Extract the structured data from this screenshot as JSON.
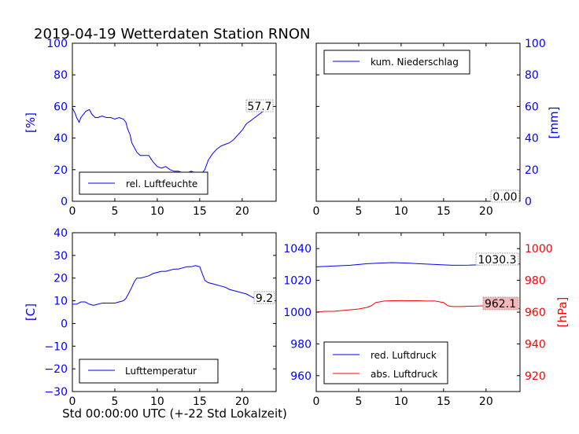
{
  "title": "2019-04-19 Wetterdaten Station RNON",
  "xlabel": "Std 00:00:00 UTC (+-22 Std Lokalzeit)",
  "colors": {
    "blue": "#0000ff",
    "red": "#ff0000",
    "axis": "#000000",
    "pressure_badge": "#f4b8b8"
  },
  "chart_data": [
    {
      "id": "humidity",
      "type": "line",
      "ylabel": "[%]",
      "xlim": [
        0,
        24
      ],
      "ylim": [
        0,
        100
      ],
      "xticks": [
        0,
        5,
        10,
        15,
        20
      ],
      "yticks": [
        0,
        20,
        40,
        60,
        80,
        100
      ],
      "legend": {
        "entries": [
          "rel. Luftfeuchte"
        ],
        "placement": "lower-left"
      },
      "last_value_label": "57.7",
      "series": [
        {
          "name": "rel. Luftfeuchte",
          "x": [
            0,
            0.3,
            0.5,
            0.8,
            1.0,
            1.3,
            1.6,
            2.0,
            2.3,
            2.7,
            3.0,
            3.5,
            4.0,
            4.5,
            5.0,
            5.5,
            6.0,
            6.3,
            6.5,
            6.8,
            7.0,
            7.3,
            7.6,
            8.0,
            8.5,
            9.0,
            9.5,
            10.0,
            10.5,
            11.0,
            11.5,
            12.0,
            12.5,
            13.0,
            13.5,
            14.0,
            14.5,
            15.0,
            15.3,
            15.6,
            16.0,
            16.5,
            17.0,
            17.5,
            18.0,
            18.5,
            19.0,
            19.5,
            20.0,
            20.5,
            21.0,
            21.5,
            22.0,
            22.5,
            23.0,
            23.5
          ],
          "values": [
            59,
            56,
            53,
            50,
            53,
            55,
            57,
            58,
            55,
            53,
            53,
            54,
            53,
            53,
            52,
            53,
            52,
            50,
            46,
            42,
            37,
            34,
            31,
            29,
            29,
            29,
            25,
            22,
            21,
            22,
            20,
            19,
            19,
            18,
            18,
            19,
            18,
            17,
            18,
            20,
            26,
            30,
            33,
            35,
            36,
            37,
            39,
            42,
            45,
            49,
            51,
            53,
            55,
            57,
            58,
            58
          ]
        }
      ]
    },
    {
      "id": "precipitation",
      "type": "line",
      "ylabel": "[mm]",
      "xlim": [
        0,
        24
      ],
      "ylim": [
        0,
        100
      ],
      "xticks": [
        0,
        5,
        10,
        15,
        20
      ],
      "yticks": [
        0,
        20,
        40,
        60,
        80,
        100
      ],
      "legend": {
        "entries": [
          "kum. Niederschlag"
        ],
        "placement": "upper-left"
      },
      "last_value_label": "0.00",
      "series": [
        {
          "name": "kum. Niederschlag",
          "x": [
            0,
            24
          ],
          "values": [
            0,
            0
          ]
        }
      ]
    },
    {
      "id": "temperature",
      "type": "line",
      "ylabel": "[C]",
      "xlim": [
        0,
        24
      ],
      "ylim": [
        -30,
        40
      ],
      "xticks": [
        0,
        5,
        10,
        15,
        20
      ],
      "yticks": [
        -30,
        -20,
        -10,
        0,
        10,
        20,
        30,
        40
      ],
      "legend": {
        "entries": [
          "Lufttemperatur"
        ],
        "placement": "lower-left"
      },
      "last_value_label": "9.2",
      "series": [
        {
          "name": "Lufttemperatur",
          "x": [
            0,
            0.5,
            1.0,
            1.5,
            2.0,
            2.5,
            3.0,
            3.5,
            4.0,
            5.0,
            5.5,
            6.0,
            6.3,
            6.6,
            7.0,
            7.3,
            7.6,
            8.0,
            8.5,
            9.0,
            9.5,
            10.0,
            10.5,
            11.0,
            11.5,
            12.0,
            12.5,
            13.0,
            13.5,
            14.0,
            14.5,
            15.0,
            15.3,
            15.6,
            16.0,
            16.5,
            17.0,
            17.5,
            18.0,
            18.5,
            19.0,
            19.5,
            20.0,
            20.5,
            21.0,
            21.5,
            22.0,
            22.5,
            23.0,
            23.5
          ],
          "values": [
            8.5,
            8.5,
            9.5,
            9.5,
            8.5,
            8,
            8.5,
            9,
            9,
            9,
            9.5,
            10,
            11,
            13,
            16,
            18.5,
            20,
            20,
            20.5,
            21,
            22,
            22.5,
            23,
            23,
            23.5,
            24,
            24,
            24.5,
            25,
            25,
            25.5,
            25,
            22,
            19,
            18,
            17.5,
            17,
            16.5,
            16,
            15,
            14.5,
            14,
            13.5,
            13,
            12,
            11,
            10.5,
            10,
            9.5,
            9.2
          ]
        }
      ]
    },
    {
      "id": "pressure",
      "type": "line",
      "ylabel_right": "[hPa]",
      "xlim": [
        0,
        24
      ],
      "ylim": [
        950,
        1050
      ],
      "ylim_right": [
        910,
        1010
      ],
      "xticks": [
        0,
        5,
        10,
        15,
        20
      ],
      "yticks": [
        960,
        980,
        1000,
        1020,
        1040
      ],
      "yticks_right": [
        920,
        940,
        960,
        980,
        1000
      ],
      "legend": {
        "entries": [
          "red. Luftdruck",
          "abs. Luftdruck"
        ],
        "placement": "lower-left"
      },
      "last_value_label_red": "1030.3",
      "last_value_label_abs": "962.1",
      "series": [
        {
          "name": "red. Luftdruck",
          "x": [
            0,
            2,
            4,
            6,
            8,
            9,
            10,
            11,
            12,
            14,
            16,
            18,
            20,
            22,
            24
          ],
          "values": [
            1028.5,
            1029,
            1029.5,
            1030.5,
            1031,
            1031.2,
            1031,
            1030.8,
            1030.5,
            1030,
            1029.5,
            1029.6,
            1030,
            1030.2,
            1030.3
          ]
        },
        {
          "name": "abs. Luftdruck",
          "x": [
            0,
            1,
            2,
            3,
            4,
            5,
            6,
            6.5,
            7,
            7.5,
            8,
            9,
            10,
            11,
            12,
            13,
            14,
            15,
            15.5,
            16,
            17,
            18,
            19,
            20,
            21,
            22,
            23,
            24
          ],
          "values": [
            960,
            960.5,
            960.5,
            961,
            961.5,
            962,
            963,
            964,
            966,
            966.5,
            967,
            967.2,
            967.3,
            967.2,
            967.2,
            967,
            967,
            966,
            964,
            963.5,
            963.5,
            963.7,
            963.8,
            964,
            963.8,
            963,
            962.5,
            962.1
          ]
        }
      ]
    }
  ]
}
